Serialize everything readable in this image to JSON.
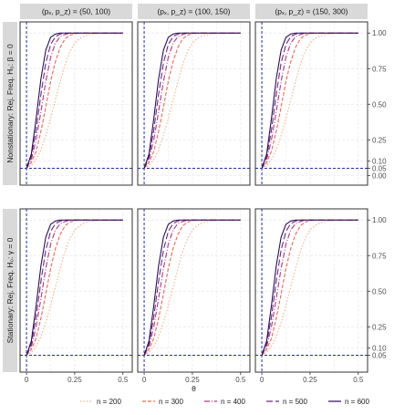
{
  "chart_data": {
    "type": "line",
    "xlabel": "θ",
    "x_ticks": [
      "0",
      "0.25",
      "0.5"
    ],
    "y_ticks": [
      "0.00",
      "0.05",
      "0.10",
      "0.25",
      "0.50",
      "0.75",
      "1.00"
    ],
    "xlim": [
      0,
      0.5
    ],
    "ylim": [
      0,
      1
    ],
    "reference_lines": {
      "vertical_x": 0,
      "horizontal_y": 0.05
    },
    "columns": [
      {
        "label": "(pₓ, p_z) = (50, 100)"
      },
      {
        "label": "(pₓ, p_z) = (100, 150)"
      },
      {
        "label": "(pₓ, p_z) = (150, 300)"
      }
    ],
    "rows": [
      {
        "label": "Nonstationary: Rej. Freq.   H₀: β = 0",
        "y_ticks": [
          "0.00",
          "0.05",
          "0.10",
          "0.25",
          "0.50",
          "0.75",
          "1.00"
        ]
      },
      {
        "label": "Stationary: Rej. Freq.   H₀: γ = 0",
        "y_ticks": [
          "0.05",
          "0.10",
          "0.25",
          "0.50",
          "0.75",
          "1.00"
        ]
      }
    ],
    "x": [
      0,
      0.025,
      0.05,
      0.075,
      0.1,
      0.125,
      0.15,
      0.175,
      0.2,
      0.225,
      0.25,
      0.275,
      0.3,
      0.35,
      0.4,
      0.45,
      0.5
    ],
    "series": [
      {
        "name": "n = 200",
        "color": "#f6b07c",
        "dash": "1.5,2",
        "values": [
          0.05,
          0.07,
          0.11,
          0.18,
          0.28,
          0.4,
          0.53,
          0.66,
          0.78,
          0.87,
          0.93,
          0.96,
          0.98,
          0.995,
          1.0,
          1.0,
          1.0
        ]
      },
      {
        "name": "n = 300",
        "color": "#e8694f",
        "dash": "4,2",
        "values": [
          0.05,
          0.09,
          0.17,
          0.31,
          0.48,
          0.66,
          0.8,
          0.9,
          0.96,
          0.985,
          0.995,
          1.0,
          1.0,
          1.0,
          1.0,
          1.0,
          1.0
        ]
      },
      {
        "name": "n = 400",
        "color": "#b5367a",
        "dash": "6,2,1,2",
        "values": [
          0.05,
          0.11,
          0.25,
          0.45,
          0.66,
          0.83,
          0.93,
          0.975,
          0.99,
          1.0,
          1.0,
          1.0,
          1.0,
          1.0,
          1.0,
          1.0,
          1.0
        ]
      },
      {
        "name": "n = 500",
        "color": "#6b2c7f",
        "dash": "7,3",
        "values": [
          0.05,
          0.13,
          0.32,
          0.57,
          0.79,
          0.92,
          0.975,
          0.993,
          1.0,
          1.0,
          1.0,
          1.0,
          1.0,
          1.0,
          1.0,
          1.0,
          1.0
        ]
      },
      {
        "name": "n = 600",
        "color": "#2b0a5c",
        "dash": "",
        "values": [
          0.05,
          0.15,
          0.4,
          0.68,
          0.88,
          0.97,
          0.993,
          1.0,
          1.0,
          1.0,
          1.0,
          1.0,
          1.0,
          1.0,
          1.0,
          1.0,
          1.0
        ]
      }
    ],
    "colors": {
      "panel_bg": "#ffffff",
      "strip_bg": "#d9d9d9",
      "grid": "#ebebeb",
      "border": "#333333",
      "ref_line": "#1f2fb0"
    },
    "legend": "bottom",
    "grid": true
  }
}
